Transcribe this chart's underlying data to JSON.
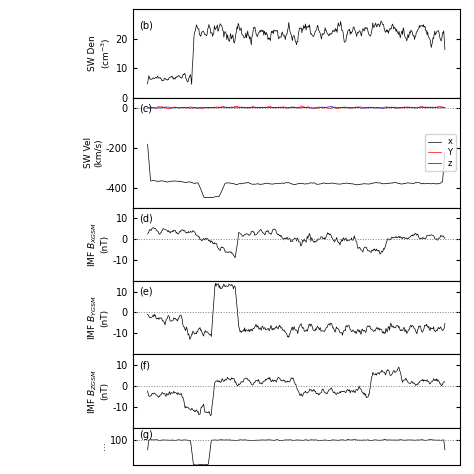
{
  "panels": [
    "b",
    "c",
    "d",
    "e",
    "f",
    "g"
  ],
  "panel_b": {
    "ylabel": "SW Den\n(cm⁻³)",
    "ylim": [
      0,
      30
    ],
    "yticks": [
      0,
      10,
      20
    ],
    "ytick_labels": [
      "0",
      "10",
      "20"
    ]
  },
  "panel_c": {
    "ylabel": "SW Vel\n(km/s)",
    "ylim": [
      -500,
      50
    ],
    "yticks": [
      0,
      -200,
      -400
    ],
    "ytick_labels": [
      "0",
      "−200",
      "−400"
    ],
    "legend": [
      "x",
      "Y",
      "z"
    ],
    "legend_colors": [
      "black",
      "red",
      "blue"
    ]
  },
  "panel_d": {
    "ylabel": "IMF Bₓᴳˢᴹ\n(nT)",
    "ylim": [
      -20,
      15
    ],
    "yticks": [
      -10,
      0,
      10
    ],
    "ytick_labels": [
      "−10",
      "0",
      "10"
    ]
  },
  "panel_e": {
    "ylabel": "IMF Bᵧᴳˢᴹ\n(nT)",
    "ylim": [
      -20,
      15
    ],
    "yticks": [
      -10,
      0,
      10
    ],
    "ytick_labels": [
      "−10",
      "0",
      "10"
    ]
  },
  "panel_f": {
    "ylabel": "IMF Bᵩᴳˢᴹ\n(nT)",
    "ylim": [
      -20,
      15
    ],
    "yticks": [
      -10,
      0,
      10
    ],
    "ytick_labels": [
      "−10",
      "0",
      "10"
    ]
  },
  "panel_g": {
    "ylabel": "...\n...",
    "ylim": [
      0,
      150
    ],
    "yticks": [
      100
    ],
    "ytick_labels": [
      "100"
    ]
  },
  "n_points": 500,
  "background_color": "white",
  "line_color": "black",
  "dotted_line_color": "gray",
  "tick_direction": "in"
}
